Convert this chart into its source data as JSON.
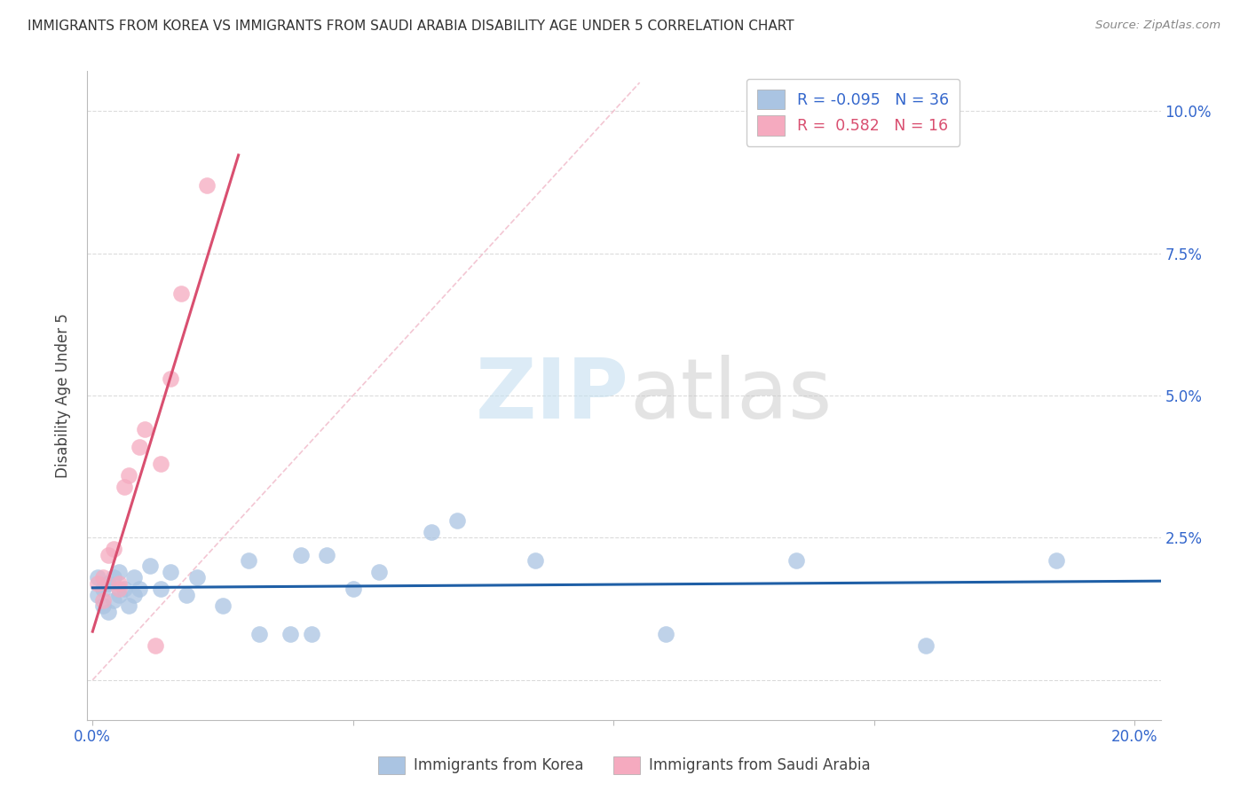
{
  "title": "IMMIGRANTS FROM KOREA VS IMMIGRANTS FROM SAUDI ARABIA DISABILITY AGE UNDER 5 CORRELATION CHART",
  "source": "Source: ZipAtlas.com",
  "ylabel_label": "Disability Age Under 5",
  "xlim": [
    -0.001,
    0.205
  ],
  "ylim": [
    -0.007,
    0.107
  ],
  "korea_R": "-0.095",
  "korea_N": "36",
  "saudi_R": "0.582",
  "saudi_N": "16",
  "korea_color": "#aac4e2",
  "saudi_color": "#f5aabf",
  "korea_line_color": "#1f5fa6",
  "saudi_line_color": "#d94f70",
  "diagonal_color": "#e0b0c0",
  "background_color": "#ffffff",
  "legend_korea": "Immigrants from Korea",
  "legend_saudi": "Immigrants from Saudi Arabia",
  "korea_x": [
    0.001,
    0.001,
    0.002,
    0.002,
    0.003,
    0.003,
    0.004,
    0.004,
    0.005,
    0.005,
    0.006,
    0.007,
    0.008,
    0.008,
    0.009,
    0.011,
    0.013,
    0.015,
    0.018,
    0.02,
    0.025,
    0.03,
    0.032,
    0.038,
    0.04,
    0.042,
    0.045,
    0.05,
    0.055,
    0.065,
    0.07,
    0.085,
    0.11,
    0.135,
    0.16,
    0.185
  ],
  "korea_y": [
    0.018,
    0.015,
    0.016,
    0.013,
    0.017,
    0.012,
    0.018,
    0.014,
    0.015,
    0.019,
    0.016,
    0.013,
    0.018,
    0.015,
    0.016,
    0.02,
    0.016,
    0.019,
    0.015,
    0.018,
    0.013,
    0.021,
    0.008,
    0.008,
    0.022,
    0.008,
    0.022,
    0.016,
    0.019,
    0.026,
    0.028,
    0.021,
    0.008,
    0.021,
    0.006,
    0.021
  ],
  "saudi_x": [
    0.001,
    0.002,
    0.002,
    0.003,
    0.004,
    0.005,
    0.005,
    0.006,
    0.007,
    0.009,
    0.01,
    0.012,
    0.013,
    0.015,
    0.017,
    0.022
  ],
  "saudi_y": [
    0.017,
    0.018,
    0.014,
    0.022,
    0.023,
    0.017,
    0.016,
    0.034,
    0.036,
    0.041,
    0.044,
    0.006,
    0.038,
    0.053,
    0.068,
    0.087
  ]
}
